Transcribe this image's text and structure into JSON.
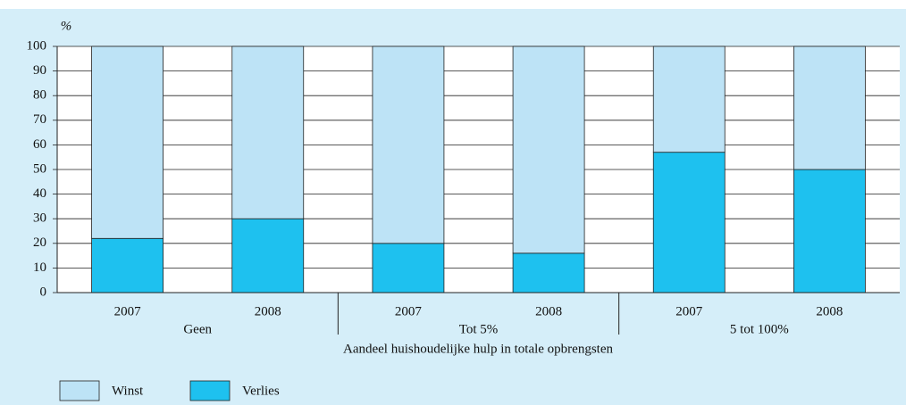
{
  "chart_data": {
    "type": "stacked_bar",
    "y_unit": "%",
    "x_label": "Aandeel huishoudelijke hulp in totale opbrengsten",
    "categories": [
      "2007",
      "2008",
      "2007",
      "2008",
      "2007",
      "2008"
    ],
    "groups": [
      "Geen",
      "Tot 5%",
      "5 tot 100%"
    ],
    "series": [
      {
        "name": "Winst",
        "color": "#bde3f6",
        "values": [
          78,
          70,
          80,
          84,
          43,
          50
        ]
      },
      {
        "name": "Verlies",
        "color": "#1ec1ef",
        "values": [
          22,
          30,
          20,
          16,
          57,
          50
        ]
      }
    ],
    "ylim": [
      0,
      100
    ],
    "yticks": [
      0,
      10,
      20,
      30,
      40,
      50,
      60,
      70,
      80,
      90,
      100
    ],
    "grid": true,
    "legend": "bottom"
  }
}
